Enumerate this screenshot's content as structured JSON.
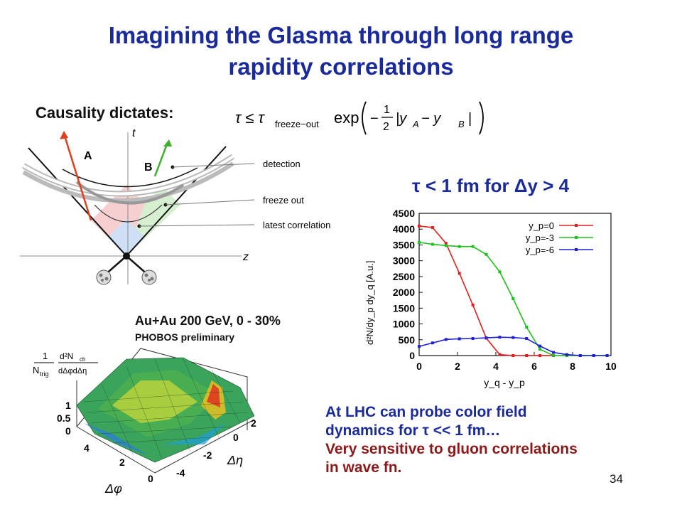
{
  "slide": {
    "title_line1": "Imagining the Glasma through long range",
    "title_line2": "rapidity correlations",
    "causality_label": "Causality dictates:",
    "formula": {
      "lhs": "τ ≤ τ",
      "sub": "freeze−out",
      "exp": "exp",
      "frac_num": "1",
      "frac_den": "2",
      "abs": "|y",
      "ya": "A",
      "minus": " − y",
      "yb": "B",
      "abs_end": "|"
    },
    "tau_condition": "τ < 1 fm for Δy > 4",
    "page_number": "34"
  },
  "spacetime": {
    "t_label": "t",
    "z_label": "z",
    "a_label": "A",
    "b_label": "B",
    "detection": "detection",
    "freeze_out": "freeze out",
    "latest_correlation": "latest correlation"
  },
  "phobos": {
    "title": "Au+Au 200 GeV, 0 - 30%",
    "subtitle": "PHOBOS preliminary",
    "zlabel_num_left": "1",
    "zlabel_den_left": "N",
    "zlabel_den_left_sub": "trig",
    "zlabel_num_right": "d²N",
    "zlabel_num_right_sub": "ch",
    "zlabel_den_right": "dΔφdΔη",
    "z_ticks": [
      "1",
      "0.5",
      "0"
    ],
    "phi_ticks": [
      "4",
      "2",
      "0"
    ],
    "eta_ticks": [
      "2",
      "0",
      "-2",
      "-4"
    ],
    "phi_label": "Δφ",
    "eta_label": "Δη"
  },
  "lhc_text": {
    "line1": "At LHC can probe color field",
    "line2": "dynamics for  τ << 1 fm…",
    "line3": "Very sensitive to gluon correlations",
    "line4": "in wave fn."
  },
  "chart_data": {
    "type": "line",
    "xlabel": "y_q - y_p",
    "ylabel": "d²N/dy_p dy_q [A.u.]",
    "xlim": [
      0,
      10
    ],
    "ylim": [
      0,
      4500
    ],
    "x_ticks": [
      0,
      2,
      4,
      6,
      8,
      10
    ],
    "y_ticks": [
      0,
      500,
      1000,
      1500,
      2000,
      2500,
      3000,
      3500,
      4000,
      4500
    ],
    "legend_position": "top-right",
    "series": [
      {
        "name": "y_p=0",
        "color": "#e02020",
        "x": [
          0,
          0.7,
          1.4,
          2.1,
          2.8,
          3.5,
          4.2,
          4.9,
          5.6,
          6.3,
          7.0
        ],
        "y": [
          4100,
          4050,
          3550,
          2600,
          1600,
          550,
          30,
          0,
          0,
          0,
          0
        ]
      },
      {
        "name": "y_p=-3",
        "color": "#20c020",
        "x": [
          0,
          0.7,
          1.4,
          2.1,
          2.8,
          3.5,
          4.2,
          4.9,
          5.6,
          6.3,
          7.0,
          7.7,
          8.4,
          9.1,
          9.8
        ],
        "y": [
          3580,
          3520,
          3480,
          3450,
          3450,
          3200,
          2650,
          1800,
          900,
          200,
          0,
          0,
          0,
          0,
          0
        ]
      },
      {
        "name": "y_p=-6",
        "color": "#2020d0",
        "x": [
          0,
          0.7,
          1.4,
          2.1,
          2.8,
          3.5,
          4.2,
          4.9,
          5.6,
          6.3,
          7.0,
          7.7,
          8.4,
          9.1,
          9.8
        ],
        "y": [
          290,
          400,
          510,
          530,
          540,
          560,
          580,
          570,
          540,
          300,
          100,
          30,
          0,
          0,
          0
        ]
      }
    ]
  }
}
